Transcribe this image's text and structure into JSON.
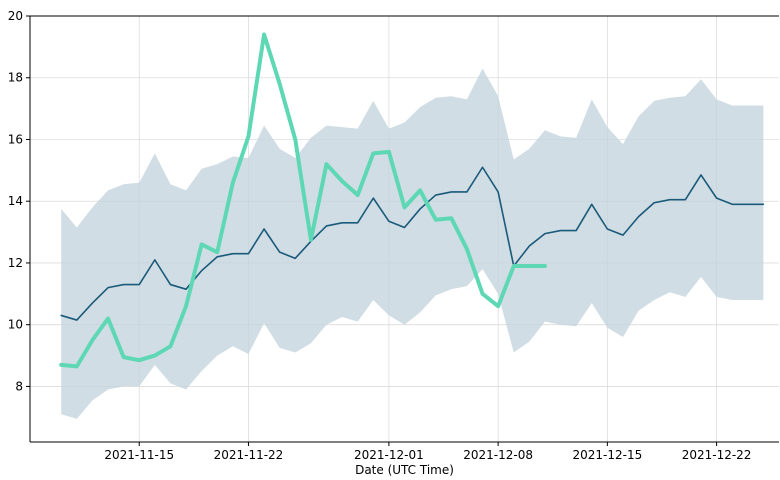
{
  "chart_data": {
    "type": "line",
    "title": "",
    "xlabel": "Date (UTC Time)",
    "ylabel": "",
    "grid": true,
    "x": [
      "2021-11-10",
      "2021-11-11",
      "2021-11-12",
      "2021-11-13",
      "2021-11-14",
      "2021-11-15",
      "2021-11-16",
      "2021-11-17",
      "2021-11-18",
      "2021-11-19",
      "2021-11-20",
      "2021-11-21",
      "2021-11-22",
      "2021-11-23",
      "2021-11-24",
      "2021-11-25",
      "2021-11-26",
      "2021-11-27",
      "2021-11-28",
      "2021-11-29",
      "2021-11-30",
      "2021-12-01",
      "2021-12-02",
      "2021-12-03",
      "2021-12-04",
      "2021-12-05",
      "2021-12-06",
      "2021-12-07",
      "2021-12-08",
      "2021-12-09",
      "2021-12-10",
      "2021-12-11",
      "2021-12-12",
      "2021-12-13",
      "2021-12-14",
      "2021-12-15",
      "2021-12-16",
      "2021-12-17",
      "2021-12-18",
      "2021-12-19",
      "2021-12-20",
      "2021-12-21",
      "2021-12-22",
      "2021-12-23",
      "2021-12-24",
      "2021-12-25"
    ],
    "xlim": [
      "2021-11-08",
      "2021-12-26"
    ],
    "ylim": [
      6.2,
      20
    ],
    "x_ticks": [
      "2021-11-15",
      "2021-11-22",
      "2021-12-01",
      "2021-12-08",
      "2021-12-15",
      "2021-12-22"
    ],
    "y_ticks": [
      8,
      10,
      12,
      14,
      16,
      18,
      20
    ],
    "series": [
      {
        "type": "band",
        "color": "#c4d4dd",
        "upper": [
          13.75,
          13.15,
          13.8,
          14.35,
          14.55,
          14.6,
          15.55,
          14.55,
          14.35,
          15.05,
          15.2,
          15.45,
          15.4,
          16.45,
          15.7,
          15.4,
          16.05,
          16.45,
          16.4,
          16.35,
          17.25,
          16.35,
          16.55,
          17.05,
          17.35,
          17.4,
          17.3,
          18.3,
          17.4,
          15.35,
          15.7,
          16.3,
          16.1,
          16.05,
          17.3,
          16.4,
          15.85,
          16.75,
          17.25,
          17.35,
          17.4,
          17.95,
          17.3,
          17.1,
          17.1,
          17.1
        ],
        "lower": [
          7.1,
          6.95,
          7.55,
          7.9,
          8.0,
          8.0,
          8.7,
          8.1,
          7.9,
          8.5,
          9.0,
          9.3,
          9.05,
          10.05,
          9.25,
          9.1,
          9.4,
          10.0,
          10.25,
          10.1,
          10.8,
          10.3,
          10.0,
          10.4,
          10.95,
          11.15,
          11.25,
          11.8,
          11.0,
          9.1,
          9.45,
          10.1,
          10.0,
          9.95,
          10.7,
          9.9,
          9.6,
          10.45,
          10.8,
          11.05,
          10.9,
          11.55,
          10.9,
          10.8,
          10.8,
          10.8
        ]
      },
      {
        "type": "line",
        "color": "#1a5a7a",
        "width": 1.6,
        "values": [
          10.3,
          10.15,
          10.7,
          11.2,
          11.3,
          11.3,
          12.1,
          11.3,
          11.15,
          11.75,
          12.2,
          12.3,
          12.3,
          13.1,
          12.35,
          12.15,
          12.7,
          13.2,
          13.3,
          13.3,
          14.1,
          13.35,
          13.15,
          13.75,
          14.2,
          14.3,
          14.3,
          15.1,
          14.3,
          11.9,
          12.55,
          12.95,
          13.05,
          13.05,
          13.9,
          13.1,
          12.9,
          13.5,
          13.95,
          14.05,
          14.05,
          14.85,
          14.1,
          13.9,
          13.9,
          13.9
        ]
      },
      {
        "type": "line",
        "color": "#5ed8b4",
        "width": 4,
        "x": [
          "2021-11-10",
          "2021-11-11",
          "2021-11-12",
          "2021-11-13",
          "2021-11-14",
          "2021-11-15",
          "2021-11-16",
          "2021-11-17",
          "2021-11-18",
          "2021-11-19",
          "2021-11-20",
          "2021-11-21",
          "2021-11-22",
          "2021-11-23",
          "2021-11-24",
          "2021-11-25",
          "2021-11-26",
          "2021-11-27",
          "2021-11-28",
          "2021-11-29",
          "2021-11-30",
          "2021-12-01",
          "2021-12-02",
          "2021-12-03",
          "2021-12-04",
          "2021-12-05",
          "2021-12-06",
          "2021-12-07",
          "2021-12-08",
          "2021-12-09",
          "2021-12-10",
          "2021-12-11"
        ],
        "values": [
          8.7,
          8.65,
          9.5,
          10.2,
          8.95,
          8.85,
          9.0,
          9.3,
          10.6,
          12.6,
          12.35,
          14.6,
          16.1,
          19.4,
          17.8,
          16.0,
          12.75,
          15.2,
          14.65,
          14.2,
          15.55,
          15.6,
          13.8,
          14.35,
          13.4,
          13.45,
          12.45,
          11.0,
          10.6,
          11.9,
          11.9,
          11.9
        ]
      }
    ]
  }
}
